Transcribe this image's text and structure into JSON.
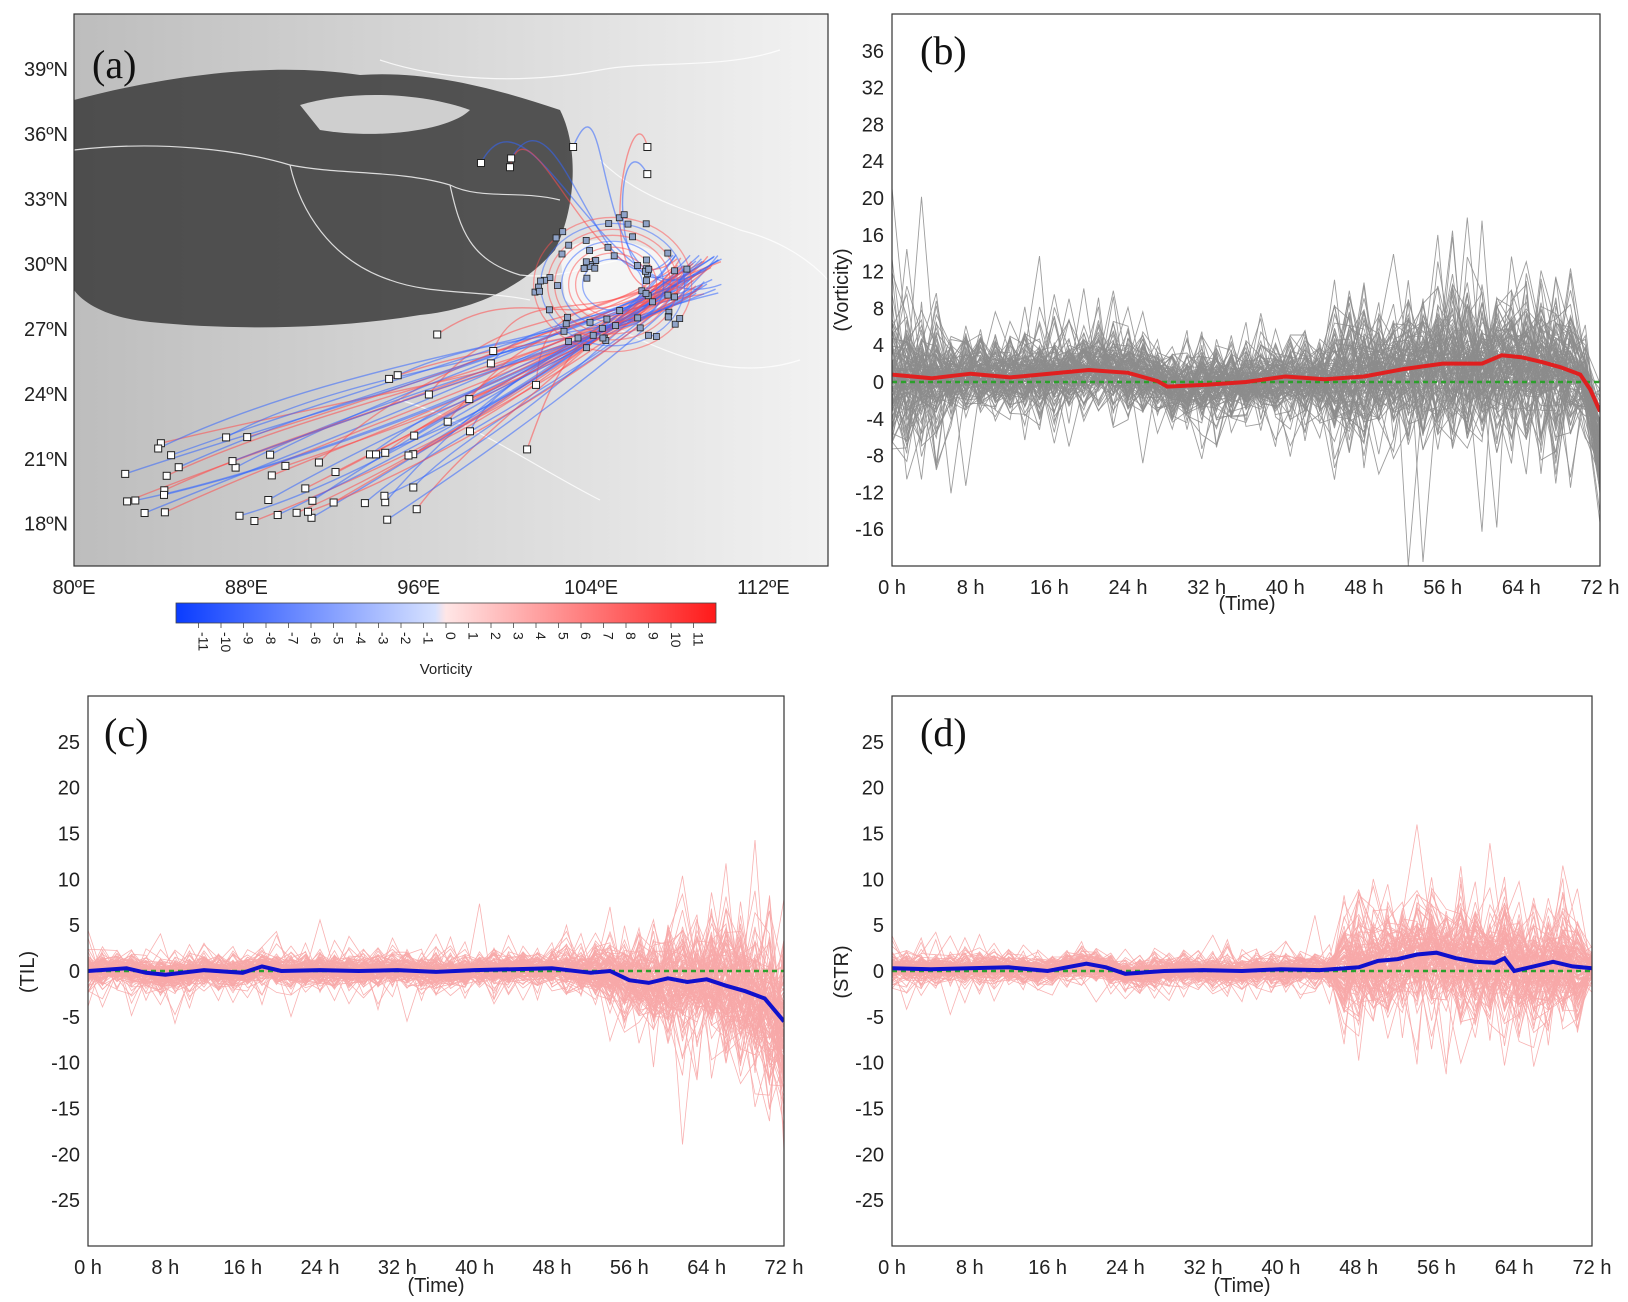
{
  "panels": {
    "a": {
      "label": "(a)"
    },
    "b": {
      "label": "(b)"
    },
    "c": {
      "label": "(c)"
    },
    "d": {
      "label": "(d)"
    }
  },
  "colors": {
    "map_vort_pos": "#ff4d4d",
    "map_vort_neg": "#3366ff",
    "b_spaghetti": "#8c8c8c",
    "b_mean": "#e02020",
    "cd_spaghetti": "#f7a8a8",
    "cd_mean": "#1010cc",
    "zero_line": "#2ca02c"
  },
  "chart_data": [
    {
      "id": "a",
      "type": "map",
      "lat_ticks": [
        "39ºN",
        "36ºN",
        "33ºN",
        "30ºN",
        "27ºN",
        "24ºN",
        "21ºN",
        "18ºN"
      ],
      "lon_ticks": [
        "80ºE",
        "88ºE",
        "96ºE",
        "104ºE",
        "112ºE"
      ],
      "lon_range": [
        80,
        115
      ],
      "lat_range": [
        16,
        41.5
      ],
      "colorbar": {
        "label": "Vorticity",
        "ticks": [
          "-11",
          "-10",
          "-9",
          "-8",
          "-7",
          "-6",
          "-5",
          "-4",
          "-3",
          "-2",
          "-1",
          "0",
          "1",
          "2",
          "3",
          "4",
          "5",
          "6",
          "7",
          "8",
          "9",
          "10",
          "11"
        ],
        "range": [
          -12,
          12
        ]
      }
    },
    {
      "id": "b",
      "type": "line",
      "xlabel": "(Time)",
      "ylabel": "(Vorticity)",
      "x_ticks": [
        "0 h",
        "8 h",
        "16 h",
        "24 h",
        "32 h",
        "40 h",
        "48 h",
        "56 h",
        "64 h",
        "72 h"
      ],
      "y_ticks": [
        "36",
        "32",
        "28",
        "24",
        "20",
        "16",
        "12",
        "8",
        "4",
        "0",
        "-4",
        "-8",
        "-12",
        "-16"
      ],
      "xlim": [
        0,
        72
      ],
      "ylim": [
        -20,
        40
      ],
      "grid": false,
      "mean": {
        "x": [
          0,
          4,
          8,
          12,
          16,
          20,
          24,
          27,
          28,
          32,
          36,
          40,
          44,
          48,
          52,
          56,
          60,
          62,
          64,
          66,
          68,
          70,
          71,
          72
        ],
        "y": [
          0.8,
          0.4,
          0.9,
          0.5,
          0.9,
          1.3,
          1.0,
          0.1,
          -0.5,
          -0.3,
          0.0,
          0.6,
          0.3,
          0.6,
          1.4,
          2.0,
          2.0,
          2.9,
          2.7,
          2.2,
          1.6,
          0.8,
          -0.8,
          -3.2
        ]
      }
    },
    {
      "id": "c",
      "type": "line",
      "xlabel": "(Time)",
      "ylabel": "(TIL)",
      "x_ticks": [
        "0 h",
        "8 h",
        "16 h",
        "24 h",
        "32 h",
        "40 h",
        "48 h",
        "56 h",
        "64 h",
        "72 h"
      ],
      "y_ticks": [
        "25",
        "20",
        "15",
        "10",
        "5",
        "0",
        "-5",
        "-10",
        "-15",
        "-20",
        "-25"
      ],
      "xlim": [
        0,
        72
      ],
      "ylim": [
        -30,
        30
      ],
      "grid": false,
      "mean": {
        "x": [
          0,
          4,
          6,
          8,
          12,
          16,
          18,
          20,
          24,
          28,
          32,
          36,
          40,
          44,
          48,
          52,
          54,
          56,
          58,
          60,
          62,
          64,
          66,
          68,
          70,
          72
        ],
        "y": [
          0.0,
          0.3,
          -0.2,
          -0.4,
          0.1,
          -0.2,
          0.5,
          0.0,
          0.1,
          0.0,
          0.1,
          -0.1,
          0.1,
          0.2,
          0.3,
          -0.2,
          0.0,
          -1.0,
          -1.3,
          -0.8,
          -1.2,
          -0.9,
          -1.6,
          -2.2,
          -3.0,
          -5.5
        ]
      }
    },
    {
      "id": "d",
      "type": "line",
      "xlabel": "(Time)",
      "ylabel": "(STR)",
      "x_ticks": [
        "0 h",
        "8 h",
        "16 h",
        "24 h",
        "32 h",
        "40 h",
        "48 h",
        "56 h",
        "64 h",
        "72 h"
      ],
      "y_ticks": [
        "25",
        "20",
        "15",
        "10",
        "5",
        "0",
        "-5",
        "-10",
        "-15",
        "-20",
        "-25"
      ],
      "xlim": [
        0,
        72
      ],
      "ylim": [
        -30,
        30
      ],
      "grid": false,
      "mean": {
        "x": [
          0,
          4,
          8,
          12,
          16,
          20,
          22,
          24,
          28,
          32,
          36,
          40,
          44,
          48,
          50,
          52,
          54,
          56,
          58,
          60,
          62,
          63,
          64,
          66,
          68,
          70,
          72
        ],
        "y": [
          0.3,
          0.2,
          0.3,
          0.4,
          0.0,
          0.8,
          0.4,
          -0.3,
          0.0,
          0.1,
          0.0,
          0.2,
          0.1,
          0.4,
          1.1,
          1.3,
          1.8,
          2.0,
          1.4,
          1.0,
          0.9,
          1.4,
          0.0,
          0.5,
          1.0,
          0.5,
          0.3
        ]
      }
    }
  ]
}
